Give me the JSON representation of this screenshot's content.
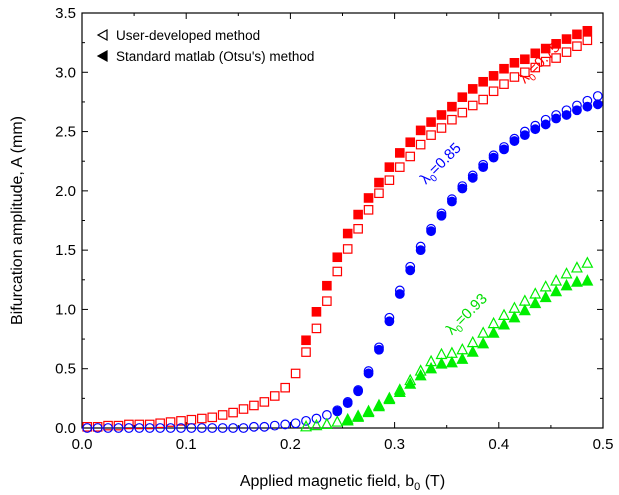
{
  "chart_data": {
    "type": "scatter",
    "xlabel_main": "Applied magnetic field, b",
    "xlabel_sub": "0",
    "xlabel_tail": " (T)",
    "ylabel": "Bifurcation amplitude, A (mm)",
    "xlim": [
      0.0,
      0.5
    ],
    "ylim": [
      0.0,
      3.5
    ],
    "xticks": [
      "0.0",
      "0.1",
      "0.2",
      "0.3",
      "0.4",
      "0.5"
    ],
    "yticks": [
      "0.0",
      "0.5",
      "1.0",
      "1.5",
      "2.0",
      "2.5",
      "3.0",
      "3.5"
    ],
    "grid": false,
    "legend": {
      "placement": "top-left",
      "entries": [
        {
          "label": "User-developed method",
          "marker": "open-left-triangle"
        },
        {
          "label": "Standard matlab (Otsu's) method",
          "marker": "filled-left-triangle"
        }
      ]
    },
    "annotations": [
      {
        "main": "λ",
        "sub": "0",
        "tail": "=0.75",
        "color": "#ff0000",
        "x": 0.425,
        "y": 2.9
      },
      {
        "main": "λ",
        "sub": "0",
        "tail": "=0.85",
        "color": "#0000ff",
        "x": 0.33,
        "y": 2.05
      },
      {
        "main": "λ",
        "sub": "0",
        "tail": "=0.93",
        "color": "#00dd00",
        "x": 0.355,
        "y": 0.78
      }
    ],
    "colors": {
      "red": "#ff0000",
      "blue": "#0000ff",
      "green": "#00ee00"
    },
    "series": [
      {
        "group": "λ0=0.75",
        "method": "User-developed",
        "marker": "open-square",
        "color": "#ff0000",
        "x": [
          0.005,
          0.015,
          0.025,
          0.035,
          0.045,
          0.055,
          0.065,
          0.075,
          0.085,
          0.095,
          0.105,
          0.115,
          0.125,
          0.135,
          0.145,
          0.155,
          0.165,
          0.175,
          0.185,
          0.195,
          0.205,
          0.215,
          0.225,
          0.235,
          0.245,
          0.255,
          0.265,
          0.275,
          0.285,
          0.295,
          0.305,
          0.315,
          0.325,
          0.335,
          0.345,
          0.355,
          0.365,
          0.375,
          0.385,
          0.395,
          0.405,
          0.415,
          0.425,
          0.435,
          0.445,
          0.455,
          0.465,
          0.475,
          0.485
        ],
        "y": [
          0.01,
          0.01,
          0.02,
          0.02,
          0.03,
          0.03,
          0.03,
          0.04,
          0.05,
          0.06,
          0.07,
          0.08,
          0.09,
          0.11,
          0.13,
          0.16,
          0.19,
          0.22,
          0.27,
          0.34,
          0.46,
          0.64,
          0.84,
          1.07,
          1.32,
          1.51,
          1.68,
          1.84,
          1.98,
          2.09,
          2.2,
          2.29,
          2.39,
          2.47,
          2.53,
          2.6,
          2.66,
          2.72,
          2.77,
          2.84,
          2.9,
          2.96,
          3.0,
          3.04,
          3.09,
          3.12,
          3.17,
          3.22,
          3.27
        ]
      },
      {
        "group": "λ0=0.75",
        "method": "Standard matlab (Otsu's)",
        "marker": "filled-square",
        "color": "#ff0000",
        "x": [
          0.215,
          0.225,
          0.235,
          0.245,
          0.255,
          0.265,
          0.275,
          0.285,
          0.295,
          0.305,
          0.315,
          0.325,
          0.335,
          0.345,
          0.355,
          0.365,
          0.375,
          0.385,
          0.395,
          0.405,
          0.415,
          0.425,
          0.435,
          0.445,
          0.455,
          0.465,
          0.475,
          0.485
        ],
        "y": [
          0.74,
          0.98,
          1.2,
          1.44,
          1.64,
          1.8,
          1.94,
          2.07,
          2.2,
          2.32,
          2.41,
          2.51,
          2.58,
          2.64,
          2.71,
          2.79,
          2.86,
          2.92,
          2.97,
          3.03,
          3.08,
          3.11,
          3.16,
          3.2,
          3.24,
          3.28,
          3.32,
          3.35
        ]
      },
      {
        "group": "λ0=0.85",
        "method": "User-developed",
        "marker": "open-circle",
        "color": "#0000ff",
        "x": [
          0.005,
          0.015,
          0.025,
          0.035,
          0.045,
          0.055,
          0.065,
          0.075,
          0.085,
          0.095,
          0.105,
          0.115,
          0.125,
          0.135,
          0.145,
          0.155,
          0.165,
          0.175,
          0.185,
          0.195,
          0.205,
          0.215,
          0.225,
          0.235,
          0.245,
          0.255,
          0.265,
          0.275,
          0.285,
          0.295,
          0.305,
          0.315,
          0.325,
          0.335,
          0.345,
          0.355,
          0.365,
          0.375,
          0.385,
          0.395,
          0.405,
          0.415,
          0.425,
          0.435,
          0.445,
          0.455,
          0.465,
          0.475,
          0.485,
          0.495
        ],
        "y": [
          0.0,
          0.0,
          0.0,
          0.0,
          0.0,
          0.0,
          0.0,
          0.0,
          0.0,
          0.0,
          0.0,
          0.0,
          0.0,
          0.0,
          0.0,
          0.0,
          0.01,
          0.01,
          0.02,
          0.03,
          0.04,
          0.06,
          0.08,
          0.11,
          0.15,
          0.22,
          0.32,
          0.48,
          0.68,
          0.93,
          1.16,
          1.36,
          1.53,
          1.68,
          1.81,
          1.93,
          2.04,
          2.13,
          2.22,
          2.3,
          2.37,
          2.44,
          2.5,
          2.55,
          2.6,
          2.64,
          2.68,
          2.72,
          2.76,
          2.8
        ]
      },
      {
        "group": "λ0=0.85",
        "method": "Standard matlab (Otsu's)",
        "marker": "filled-circle",
        "color": "#0000ff",
        "x": [
          0.245,
          0.255,
          0.265,
          0.275,
          0.285,
          0.295,
          0.305,
          0.315,
          0.325,
          0.335,
          0.345,
          0.355,
          0.365,
          0.375,
          0.385,
          0.395,
          0.405,
          0.415,
          0.425,
          0.435,
          0.445,
          0.455,
          0.465,
          0.475,
          0.485,
          0.495
        ],
        "y": [
          0.14,
          0.21,
          0.31,
          0.46,
          0.66,
          0.9,
          1.13,
          1.33,
          1.5,
          1.66,
          1.79,
          1.91,
          2.02,
          2.11,
          2.2,
          2.28,
          2.35,
          2.42,
          2.47,
          2.52,
          2.56,
          2.61,
          2.64,
          2.68,
          2.71,
          2.73
        ]
      },
      {
        "group": "λ0=0.93",
        "method": "User-developed",
        "marker": "open-triangle",
        "color": "#00ee00",
        "x": [
          0.215,
          0.225,
          0.235,
          0.245,
          0.255,
          0.265,
          0.275,
          0.285,
          0.295,
          0.305,
          0.315,
          0.325,
          0.335,
          0.345,
          0.355,
          0.365,
          0.375,
          0.385,
          0.395,
          0.405,
          0.415,
          0.425,
          0.435,
          0.445,
          0.455,
          0.465,
          0.475,
          0.485
        ],
        "y": [
          0.01,
          0.02,
          0.03,
          0.05,
          0.07,
          0.1,
          0.14,
          0.19,
          0.25,
          0.32,
          0.4,
          0.48,
          0.56,
          0.62,
          0.63,
          0.66,
          0.72,
          0.8,
          0.88,
          0.95,
          1.01,
          1.07,
          1.13,
          1.19,
          1.24,
          1.3,
          1.35,
          1.39
        ]
      },
      {
        "group": "λ0=0.93",
        "method": "Standard matlab (Otsu's)",
        "marker": "filled-triangle",
        "color": "#00ee00",
        "x": [
          0.255,
          0.265,
          0.275,
          0.285,
          0.295,
          0.305,
          0.315,
          0.325,
          0.335,
          0.345,
          0.355,
          0.365,
          0.375,
          0.385,
          0.395,
          0.405,
          0.415,
          0.425,
          0.435,
          0.445,
          0.455,
          0.465,
          0.475,
          0.485
        ],
        "y": [
          0.06,
          0.09,
          0.13,
          0.18,
          0.24,
          0.3,
          0.37,
          0.44,
          0.5,
          0.54,
          0.55,
          0.58,
          0.64,
          0.71,
          0.8,
          0.87,
          0.93,
          0.99,
          1.05,
          1.1,
          1.15,
          1.2,
          1.23,
          1.24
        ]
      }
    ]
  }
}
